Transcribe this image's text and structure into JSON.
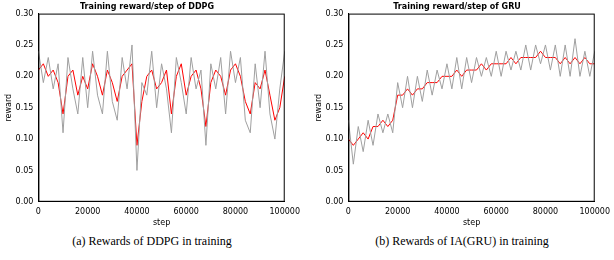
{
  "chart_data": [
    {
      "type": "line",
      "title": "Training reward/step of DDPG",
      "x_label": "step",
      "y_label": "reward",
      "caption": "(a) Rewards of DDPG in training",
      "x": [
        0,
        2000,
        4000,
        6000,
        8000,
        10000,
        12000,
        14000,
        16000,
        18000,
        20000,
        22000,
        24000,
        26000,
        28000,
        30000,
        32000,
        34000,
        36000,
        38000,
        40000,
        42000,
        44000,
        46000,
        48000,
        50000,
        52000,
        54000,
        56000,
        58000,
        60000,
        62000,
        64000,
        66000,
        68000,
        70000,
        72000,
        74000,
        76000,
        78000,
        80000,
        82000,
        84000,
        86000,
        88000,
        90000,
        92000,
        94000,
        96000,
        98000,
        100000
      ],
      "series": [
        {
          "color": "#a0a0a0",
          "values": [
            0.24,
            0.19,
            0.23,
            0.18,
            0.22,
            0.11,
            0.23,
            0.18,
            0.14,
            0.23,
            0.15,
            0.24,
            0.17,
            0.14,
            0.24,
            0.16,
            0.13,
            0.23,
            0.18,
            0.25,
            0.05,
            0.19,
            0.17,
            0.24,
            0.15,
            0.22,
            0.18,
            0.11,
            0.23,
            0.19,
            0.14,
            0.23,
            0.18,
            0.21,
            0.09,
            0.22,
            0.18,
            0.23,
            0.14,
            0.24,
            0.19,
            0.23,
            0.13,
            0.11,
            0.22,
            0.15,
            0.24,
            0.14,
            0.1,
            0.18,
            0.24
          ]
        },
        {
          "color": "#ff0000",
          "values": [
            0.21,
            0.22,
            0.2,
            0.21,
            0.19,
            0.14,
            0.2,
            0.21,
            0.17,
            0.2,
            0.18,
            0.22,
            0.2,
            0.17,
            0.21,
            0.19,
            0.16,
            0.2,
            0.21,
            0.22,
            0.09,
            0.16,
            0.2,
            0.21,
            0.18,
            0.19,
            0.21,
            0.14,
            0.2,
            0.22,
            0.17,
            0.2,
            0.21,
            0.18,
            0.12,
            0.19,
            0.21,
            0.2,
            0.17,
            0.21,
            0.22,
            0.2,
            0.16,
            0.14,
            0.19,
            0.18,
            0.21,
            0.17,
            0.13,
            0.15,
            0.2
          ]
        }
      ],
      "xlim": [
        0,
        100000
      ],
      "xticks": [
        0,
        20000,
        40000,
        60000,
        80000,
        100000
      ],
      "ylim": [
        0,
        0.3
      ],
      "yticks": [
        {
          "value": 0,
          "label": "0.00"
        },
        {
          "value": 0.05,
          "label": "0.05"
        },
        {
          "value": 0.1,
          "label": "0.10"
        },
        {
          "value": 0.15,
          "label": "0.15"
        },
        {
          "value": 0.2,
          "label": "0.20"
        },
        {
          "value": 0.25,
          "label": "0.25"
        },
        {
          "value": 0.3,
          "label": "0.30"
        }
      ],
      "grid": false
    },
    {
      "type": "line",
      "title": "Training reward/step of GRU",
      "x_label": "step",
      "y_label": "reward",
      "caption": "(b) Rewards of IA(GRU) in training",
      "x": [
        0,
        2000,
        4000,
        6000,
        8000,
        10000,
        12000,
        14000,
        16000,
        18000,
        20000,
        22000,
        24000,
        26000,
        28000,
        30000,
        32000,
        34000,
        36000,
        38000,
        40000,
        42000,
        44000,
        46000,
        48000,
        50000,
        52000,
        54000,
        56000,
        58000,
        60000,
        62000,
        64000,
        66000,
        68000,
        70000,
        72000,
        74000,
        76000,
        78000,
        80000,
        82000,
        84000,
        86000,
        88000,
        90000,
        92000,
        94000,
        96000,
        98000,
        100000
      ],
      "series": [
        {
          "color": "#a0a0a0",
          "values": [
            0.13,
            0.06,
            0.12,
            0.08,
            0.13,
            0.09,
            0.14,
            0.11,
            0.14,
            0.11,
            0.19,
            0.15,
            0.2,
            0.15,
            0.2,
            0.16,
            0.21,
            0.17,
            0.21,
            0.18,
            0.22,
            0.18,
            0.23,
            0.18,
            0.23,
            0.19,
            0.23,
            0.2,
            0.23,
            0.2,
            0.24,
            0.2,
            0.24,
            0.21,
            0.24,
            0.21,
            0.25,
            0.21,
            0.25,
            0.22,
            0.25,
            0.21,
            0.25,
            0.2,
            0.25,
            0.2,
            0.26,
            0.2,
            0.24,
            0.2,
            0.24
          ]
        },
        {
          "color": "#ff0000",
          "values": [
            0.1,
            0.09,
            0.1,
            0.11,
            0.1,
            0.12,
            0.12,
            0.13,
            0.12,
            0.13,
            0.17,
            0.17,
            0.18,
            0.17,
            0.18,
            0.18,
            0.19,
            0.19,
            0.19,
            0.2,
            0.2,
            0.2,
            0.21,
            0.2,
            0.21,
            0.21,
            0.21,
            0.22,
            0.21,
            0.22,
            0.22,
            0.22,
            0.22,
            0.23,
            0.22,
            0.23,
            0.23,
            0.23,
            0.23,
            0.24,
            0.23,
            0.23,
            0.23,
            0.22,
            0.23,
            0.22,
            0.23,
            0.22,
            0.23,
            0.22,
            0.22
          ]
        }
      ],
      "xlim": [
        0,
        100000
      ],
      "xticks": [
        0,
        20000,
        40000,
        60000,
        80000,
        100000
      ],
      "ylim": [
        0,
        0.3
      ],
      "yticks": [
        {
          "value": 0,
          "label": "0.00"
        },
        {
          "value": 0.05,
          "label": "0.05"
        },
        {
          "value": 0.1,
          "label": "0.10"
        },
        {
          "value": 0.15,
          "label": "0.15"
        },
        {
          "value": 0.2,
          "label": "0.20"
        },
        {
          "value": 0.25,
          "label": "0.25"
        },
        {
          "value": 0.3,
          "label": "0.30"
        }
      ],
      "grid": false
    }
  ]
}
